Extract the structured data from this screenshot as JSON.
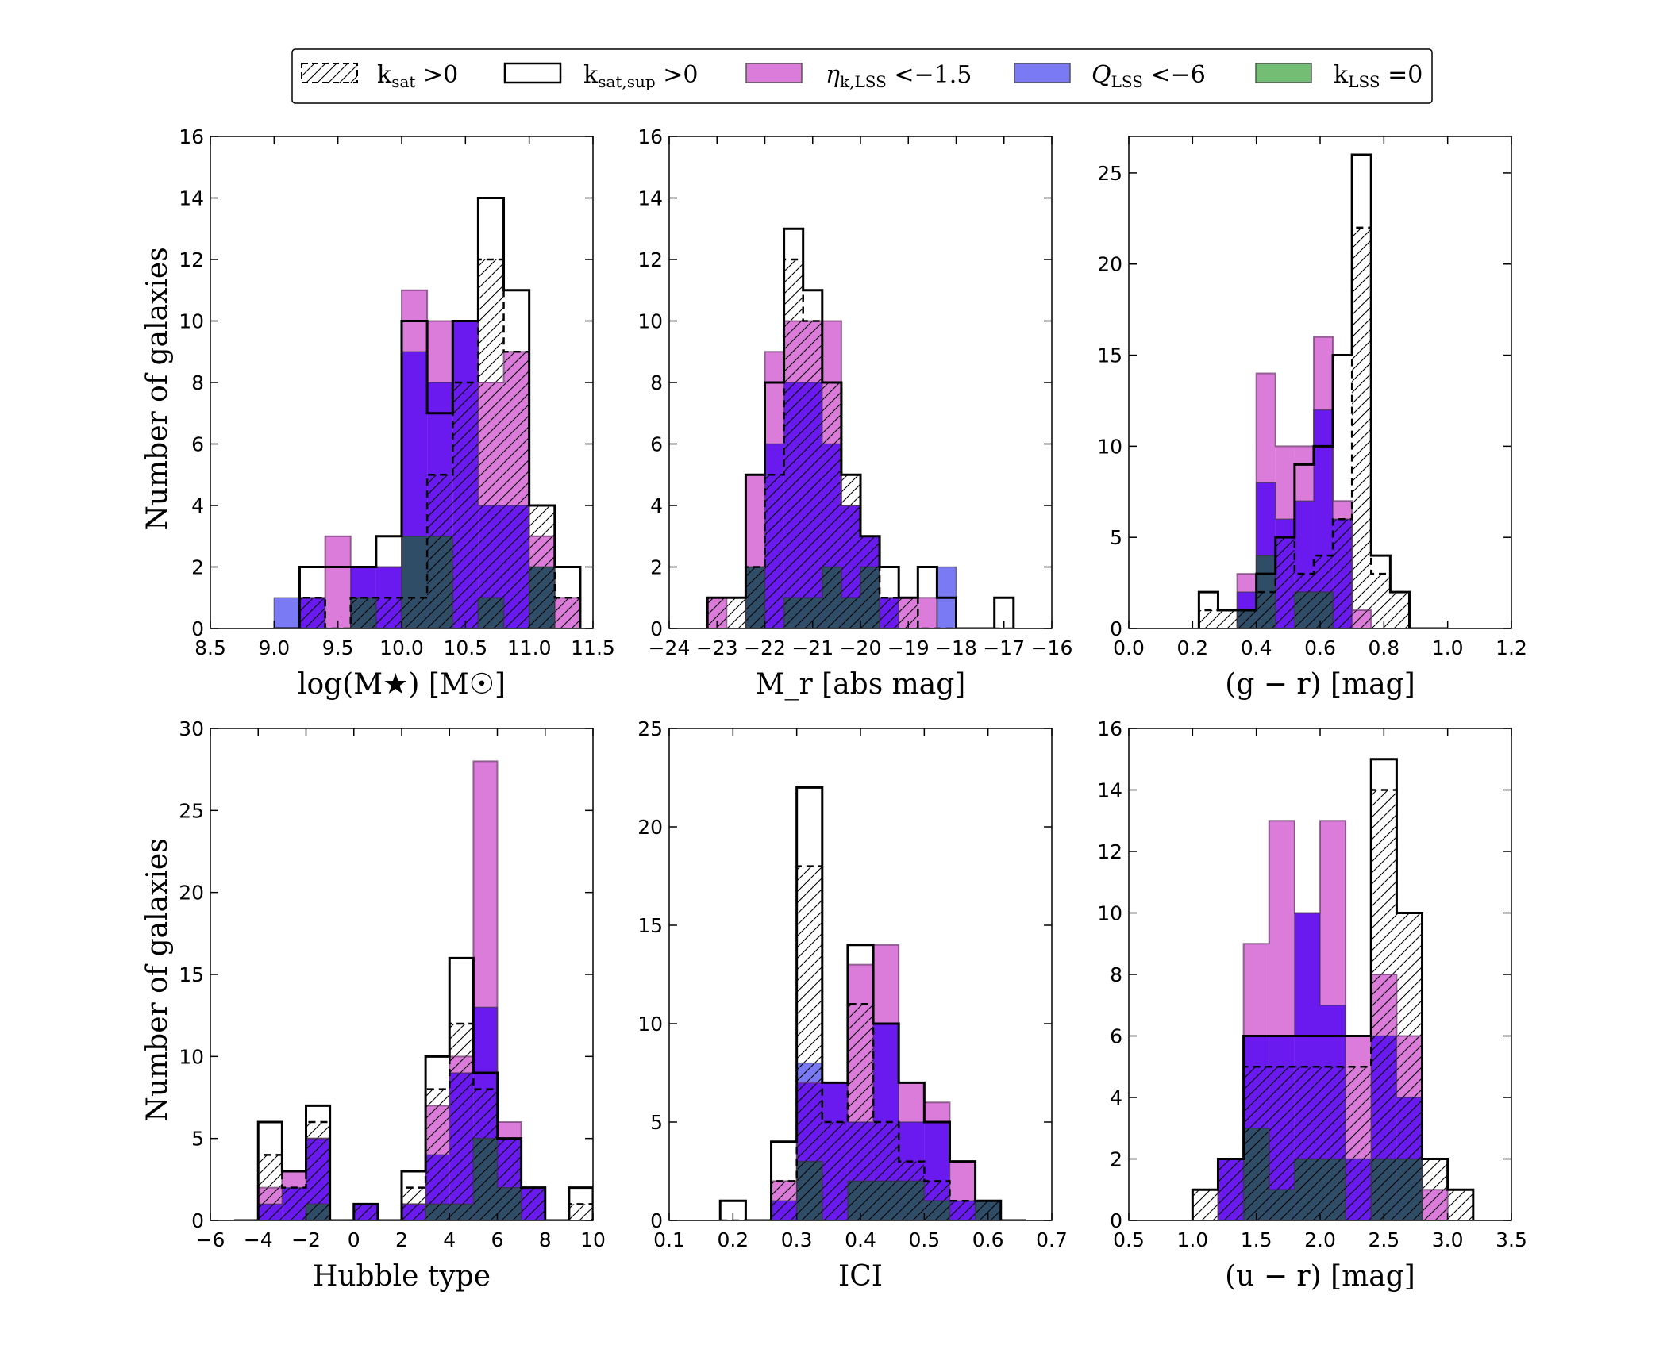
{
  "colors": {
    "eta": "#cc44cc",
    "q": "#3333ee",
    "klss": "#2a9a2a",
    "overlap": "#2f4d66",
    "dark_blue": "#6a1aee"
  },
  "legend": {
    "items": [
      {
        "key": "ksat",
        "label": "k_sat > 0",
        "style": "hatched-dashed"
      },
      {
        "key": "ksatsup",
        "label": "k_sat,sup > 0",
        "style": "outline"
      },
      {
        "key": "eta",
        "label": "η_k,LSS < −1.5",
        "style": "fill-magenta"
      },
      {
        "key": "q",
        "label": "Q_LSS < −6",
        "style": "fill-blue"
      },
      {
        "key": "klss",
        "label": "k_LSS = 0",
        "style": "fill-green"
      }
    ]
  },
  "ylabel": "Number of galaxies",
  "chart_data": [
    {
      "type": "histogram",
      "xlabel": "log(M★) [M☉]",
      "xlim": [
        8.5,
        11.5
      ],
      "ylim": [
        0,
        16
      ],
      "xticks": [
        "8.5",
        "9.0",
        "9.5",
        "10.0",
        "10.5",
        "11.0",
        "11.5"
      ],
      "yticks": [
        "0",
        "2",
        "4",
        "6",
        "8",
        "10",
        "12",
        "14",
        "16"
      ],
      "bin_edges": [
        9.0,
        9.2,
        9.4,
        9.6,
        9.8,
        10.0,
        10.2,
        10.4,
        10.6,
        10.8,
        11.0,
        11.2,
        11.4
      ],
      "series": [
        {
          "name": "ksatsup",
          "values": [
            0,
            2,
            2,
            2,
            3,
            10,
            7,
            10,
            14,
            11,
            4,
            2
          ]
        },
        {
          "name": "ksat",
          "values": [
            0,
            1,
            0,
            1,
            1,
            1,
            5,
            8,
            12,
            9,
            4,
            1
          ]
        },
        {
          "name": "eta",
          "values": [
            0,
            1,
            3,
            2,
            2,
            11,
            10,
            10,
            8,
            9,
            3,
            1
          ]
        },
        {
          "name": "q",
          "values": [
            1,
            1,
            0,
            2,
            2,
            9,
            8,
            10,
            4,
            4,
            2,
            0
          ]
        },
        {
          "name": "klss",
          "values": [
            0,
            0,
            0,
            1,
            0,
            3,
            3,
            0,
            1,
            0,
            2,
            0
          ]
        }
      ]
    },
    {
      "type": "histogram",
      "xlabel": "M_r [abs mag]",
      "xlim": [
        -24,
        -16
      ],
      "ylim": [
        0,
        16
      ],
      "xticks": [
        "−24",
        "−23",
        "−22",
        "−21",
        "−20",
        "−19",
        "−18",
        "−17",
        "−16"
      ],
      "yticks": [
        "0",
        "2",
        "4",
        "6",
        "8",
        "10",
        "12",
        "14",
        "16"
      ],
      "bin_edges": [
        -23.2,
        -22.8,
        -22.4,
        -22.0,
        -21.6,
        -21.2,
        -20.8,
        -20.4,
        -20.0,
        -19.6,
        -19.2,
        -18.8,
        -18.4,
        -18.0,
        -17.6,
        -17.2,
        -16.8
      ],
      "series": [
        {
          "name": "ksatsup",
          "values": [
            1,
            1,
            5,
            8,
            13,
            11,
            8,
            5,
            3,
            2,
            1,
            2,
            1,
            0,
            0,
            1
          ]
        },
        {
          "name": "ksat",
          "values": [
            1,
            1,
            2,
            5,
            12,
            10,
            8,
            5,
            3,
            1,
            1,
            0,
            0,
            0,
            0,
            0
          ]
        },
        {
          "name": "eta",
          "values": [
            1,
            0,
            5,
            9,
            10,
            10,
            10,
            4,
            3,
            1,
            1,
            1,
            0,
            0,
            0,
            0
          ]
        },
        {
          "name": "q",
          "values": [
            0,
            0,
            2,
            6,
            8,
            8,
            6,
            4,
            3,
            1,
            0,
            0,
            2,
            0,
            0,
            0
          ]
        },
        {
          "name": "klss",
          "values": [
            0,
            0,
            2,
            0,
            1,
            1,
            2,
            1,
            2,
            0,
            0,
            0,
            0,
            0,
            0,
            0
          ]
        }
      ]
    },
    {
      "type": "histogram",
      "xlabel": "(g − r) [mag]",
      "xlim": [
        0.0,
        1.2
      ],
      "ylim": [
        0,
        27
      ],
      "xticks": [
        "0.0",
        "0.2",
        "0.4",
        "0.6",
        "0.8",
        "1.0",
        "1.2"
      ],
      "yticks": [
        "0",
        "5",
        "10",
        "15",
        "20",
        "25"
      ],
      "bin_edges": [
        0.22,
        0.28,
        0.34,
        0.4,
        0.46,
        0.52,
        0.58,
        0.64,
        0.7,
        0.76,
        0.82,
        0.88,
        0.94,
        1.0
      ],
      "series": [
        {
          "name": "ksatsup",
          "values": [
            2,
            1,
            1,
            3,
            5,
            9,
            10,
            15,
            26,
            4,
            2,
            0,
            0
          ]
        },
        {
          "name": "ksat",
          "values": [
            1,
            1,
            1,
            2,
            5,
            3,
            4,
            6,
            22,
            3,
            2,
            0,
            0
          ]
        },
        {
          "name": "eta",
          "values": [
            0,
            0,
            3,
            14,
            10,
            10,
            16,
            7,
            1,
            0,
            0,
            0,
            0
          ]
        },
        {
          "name": "q",
          "values": [
            0,
            0,
            2,
            8,
            6,
            7,
            12,
            6,
            0,
            0,
            0,
            0,
            0
          ]
        },
        {
          "name": "klss",
          "values": [
            0,
            0,
            1,
            4,
            0,
            2,
            2,
            0,
            0,
            0,
            0,
            0,
            0
          ]
        }
      ]
    },
    {
      "type": "histogram",
      "xlabel": "Hubble type",
      "xlim": [
        -6,
        10
      ],
      "ylim": [
        0,
        30
      ],
      "xticks": [
        "−6",
        "−4",
        "−2",
        "0",
        "2",
        "4",
        "6",
        "8",
        "10"
      ],
      "yticks": [
        "0",
        "5",
        "10",
        "15",
        "20",
        "25",
        "30"
      ],
      "bin_edges": [
        -5,
        -4,
        -3,
        -2,
        -1,
        0,
        1,
        2,
        3,
        4,
        5,
        6,
        7,
        8,
        9,
        10
      ],
      "series": [
        {
          "name": "ksatsup",
          "values": [
            0,
            6,
            3,
            7,
            0,
            1,
            0,
            3,
            10,
            16,
            9,
            5,
            2,
            0,
            2
          ]
        },
        {
          "name": "ksat",
          "values": [
            0,
            4,
            2,
            6,
            0,
            1,
            0,
            2,
            8,
            12,
            8,
            5,
            2,
            0,
            1
          ]
        },
        {
          "name": "eta",
          "values": [
            0,
            2,
            3,
            5,
            0,
            1,
            0,
            1,
            7,
            10,
            28,
            6,
            2,
            0,
            0
          ]
        },
        {
          "name": "q",
          "values": [
            0,
            1,
            2,
            5,
            0,
            1,
            0,
            1,
            4,
            9,
            13,
            5,
            2,
            0,
            0
          ]
        },
        {
          "name": "klss",
          "values": [
            0,
            0,
            0,
            1,
            0,
            0,
            0,
            0,
            1,
            1,
            5,
            2,
            0,
            0,
            0
          ]
        }
      ]
    },
    {
      "type": "histogram",
      "xlabel": "ICI",
      "xlim": [
        0.1,
        0.7
      ],
      "ylim": [
        0,
        25
      ],
      "xticks": [
        "0.1",
        "0.2",
        "0.3",
        "0.4",
        "0.5",
        "0.6",
        "0.7"
      ],
      "yticks": [
        "0",
        "5",
        "10",
        "15",
        "20",
        "25"
      ],
      "bin_edges": [
        0.18,
        0.22,
        0.26,
        0.3,
        0.34,
        0.38,
        0.42,
        0.46,
        0.5,
        0.54,
        0.58,
        0.62,
        0.66
      ],
      "series": [
        {
          "name": "ksatsup",
          "values": [
            1,
            0,
            4,
            22,
            7,
            14,
            10,
            7,
            5,
            3,
            1,
            0
          ]
        },
        {
          "name": "ksat",
          "values": [
            0,
            0,
            2,
            18,
            5,
            11,
            5,
            3,
            2,
            1,
            1,
            0
          ]
        },
        {
          "name": "eta",
          "values": [
            0,
            0,
            2,
            7,
            7,
            13,
            14,
            7,
            6,
            3,
            1,
            0
          ]
        },
        {
          "name": "q",
          "values": [
            0,
            0,
            1,
            8,
            7,
            5,
            10,
            5,
            5,
            1,
            1,
            0
          ]
        },
        {
          "name": "klss",
          "values": [
            0,
            0,
            0,
            3,
            0,
            2,
            2,
            2,
            1,
            0,
            1,
            0
          ]
        }
      ]
    },
    {
      "type": "histogram",
      "xlabel": "(u − r) [mag]",
      "xlim": [
        0.5,
        3.5
      ],
      "ylim": [
        0,
        16
      ],
      "xticks": [
        "0.5",
        "1.0",
        "1.5",
        "2.0",
        "2.5",
        "3.0",
        "3.5"
      ],
      "yticks": [
        "0",
        "2",
        "4",
        "6",
        "8",
        "10",
        "12",
        "14",
        "16"
      ],
      "bin_edges": [
        1.0,
        1.2,
        1.4,
        1.6,
        1.8,
        2.0,
        2.2,
        2.4,
        2.6,
        2.8,
        3.0,
        3.2
      ],
      "series": [
        {
          "name": "ksatsup",
          "values": [
            1,
            2,
            6,
            6,
            6,
            6,
            6,
            15,
            10,
            2,
            1
          ]
        },
        {
          "name": "ksat",
          "values": [
            1,
            2,
            5,
            5,
            5,
            5,
            5,
            14,
            10,
            2,
            1
          ]
        },
        {
          "name": "eta",
          "values": [
            0,
            2,
            9,
            13,
            10,
            13,
            6,
            8,
            6,
            1,
            0
          ]
        },
        {
          "name": "q",
          "values": [
            0,
            2,
            6,
            6,
            10,
            7,
            2,
            6,
            4,
            0,
            0
          ]
        },
        {
          "name": "klss",
          "values": [
            0,
            0,
            3,
            1,
            2,
            2,
            0,
            2,
            2,
            0,
            0
          ]
        }
      ]
    }
  ]
}
